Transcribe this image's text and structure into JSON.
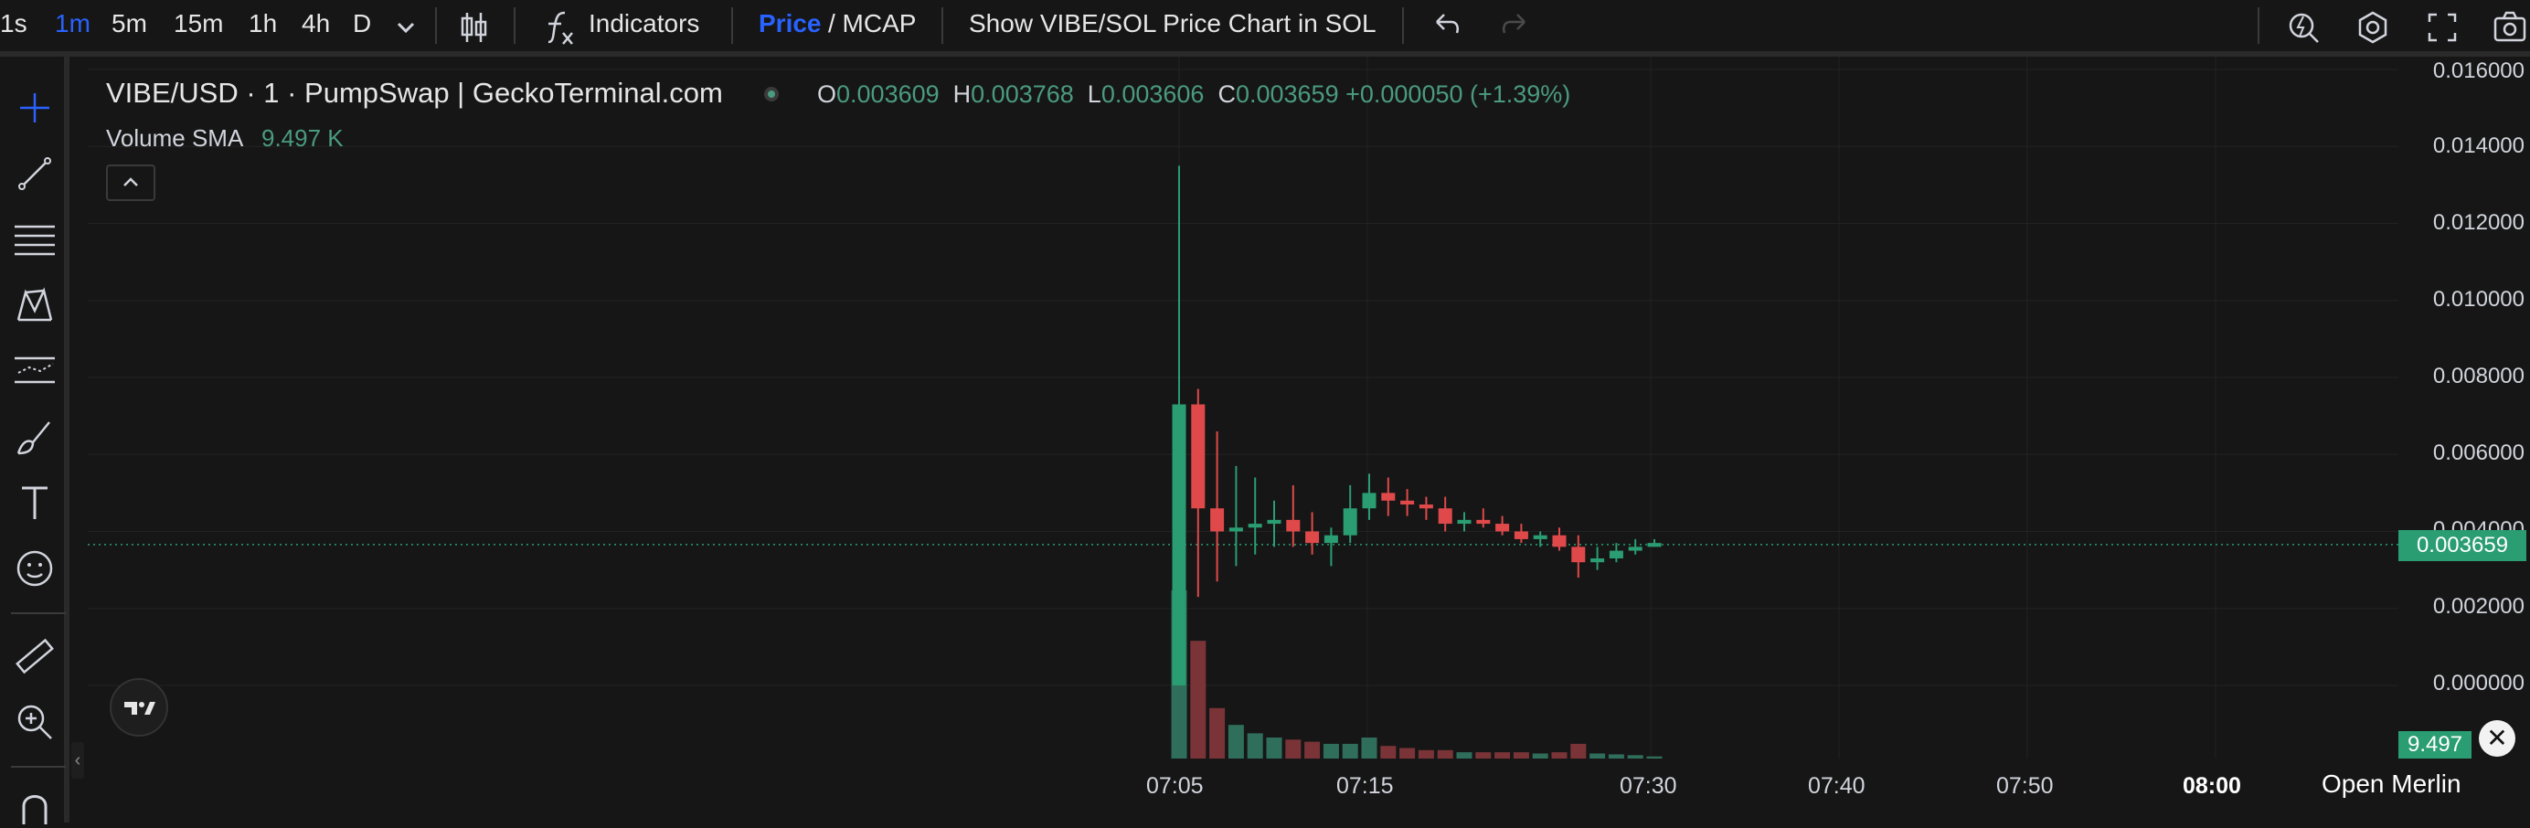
{
  "toolbar": {
    "timeframes": [
      "1s",
      "1m",
      "5m",
      "15m",
      "1h",
      "4h",
      "D"
    ],
    "active_timeframe": "1m",
    "indicators_label": "Indicators",
    "price_label": "Price",
    "mcap_label": "/ MCAP",
    "show_sol_label": "Show VIBE/SOL Price Chart in SOL",
    "icons": [
      "chevron-down-icon",
      "candles-icon",
      "fx-icon",
      "undo-icon",
      "redo-icon",
      "quick-search-icon",
      "settings-icon",
      "fullscreen-icon",
      "camera-icon"
    ]
  },
  "left_tools": {
    "icons": [
      "crosshair-icon",
      "trend-line-icon",
      "fib-lines-icon",
      "pattern-icon",
      "prediction-icon",
      "brush-icon",
      "text-tool-icon",
      "emoji-icon",
      "ruler-icon",
      "zoom-in-icon",
      "magnet-icon"
    ]
  },
  "legend": {
    "title": "VIBE/USD · 1 · PumpSwap | GeckoTerminal.com",
    "o_key": "O",
    "o_val": "0.003609",
    "h_key": "H",
    "h_val": "0.003768",
    "l_key": "L",
    "l_val": "0.003606",
    "c_key": "C",
    "c_val": "0.003659",
    "change": "+0.000050 (+1.39%)",
    "volume_label": "Volume SMA",
    "volume_value": "9.497 K"
  },
  "axis": {
    "y_ticks": [
      "0.016000",
      "0.014000",
      "0.012000",
      "0.010000",
      "0.008000",
      "0.006000",
      "0.004000",
      "0.002000",
      "0.000000"
    ],
    "x_ticks": [
      "07:05",
      "07:15",
      "07:30",
      "07:40",
      "07:50",
      "08:00"
    ],
    "current_price": "0.003659",
    "volume_badge": "9.497"
  },
  "overlay": {
    "open_merlin": "Open Merlin",
    "close_glyph": "✕"
  },
  "colors": {
    "up": "#2a9d72",
    "down": "#e0494a",
    "up_volume": "#2f6e5a",
    "down_volume": "#7a3437",
    "accent": "#2962ff"
  },
  "chart_data": {
    "type": "candlestick",
    "title": "VIBE/USD · 1 · PumpSwap | GeckoTerminal.com",
    "ylim": [
      0,
      0.016
    ],
    "current_price": 0.003659,
    "candles": [
      {
        "t": "07:05",
        "o": 0.0,
        "h": 0.0135,
        "l": 0.0,
        "c": 0.0073,
        "v": 40
      },
      {
        "t": "07:06",
        "o": 0.0073,
        "h": 0.0077,
        "l": 0.0023,
        "c": 0.0046,
        "v": 28
      },
      {
        "t": "07:07",
        "o": 0.0046,
        "h": 0.0066,
        "l": 0.0027,
        "c": 0.004,
        "v": 12
      },
      {
        "t": "07:08",
        "o": 0.004,
        "h": 0.0057,
        "l": 0.0031,
        "c": 0.0041,
        "v": 8
      },
      {
        "t": "07:09",
        "o": 0.0041,
        "h": 0.0054,
        "l": 0.0034,
        "c": 0.0042,
        "v": 6
      },
      {
        "t": "07:10",
        "o": 0.0042,
        "h": 0.0048,
        "l": 0.0036,
        "c": 0.0043,
        "v": 5
      },
      {
        "t": "07:11",
        "o": 0.0043,
        "h": 0.0052,
        "l": 0.0036,
        "c": 0.004,
        "v": 4.5
      },
      {
        "t": "07:12",
        "o": 0.004,
        "h": 0.0045,
        "l": 0.0034,
        "c": 0.0037,
        "v": 4
      },
      {
        "t": "07:13",
        "o": 0.0037,
        "h": 0.0041,
        "l": 0.0031,
        "c": 0.0039,
        "v": 3.5
      },
      {
        "t": "07:14",
        "o": 0.0039,
        "h": 0.0052,
        "l": 0.0037,
        "c": 0.0046,
        "v": 3.5
      },
      {
        "t": "07:15",
        "o": 0.0046,
        "h": 0.0055,
        "l": 0.0043,
        "c": 0.005,
        "v": 5
      },
      {
        "t": "07:16",
        "o": 0.005,
        "h": 0.0054,
        "l": 0.0044,
        "c": 0.0048,
        "v": 3
      },
      {
        "t": "07:17",
        "o": 0.0048,
        "h": 0.0051,
        "l": 0.0044,
        "c": 0.0047,
        "v": 2.5
      },
      {
        "t": "07:18",
        "o": 0.0047,
        "h": 0.0049,
        "l": 0.0043,
        "c": 0.0046,
        "v": 2
      },
      {
        "t": "07:19",
        "o": 0.0046,
        "h": 0.0049,
        "l": 0.004,
        "c": 0.0042,
        "v": 2
      },
      {
        "t": "07:20",
        "o": 0.0042,
        "h": 0.0045,
        "l": 0.004,
        "c": 0.0043,
        "v": 1.5
      },
      {
        "t": "07:21",
        "o": 0.0043,
        "h": 0.0046,
        "l": 0.0041,
        "c": 0.0042,
        "v": 1.5
      },
      {
        "t": "07:22",
        "o": 0.0042,
        "h": 0.0044,
        "l": 0.0039,
        "c": 0.004,
        "v": 1.5
      },
      {
        "t": "07:23",
        "o": 0.004,
        "h": 0.0042,
        "l": 0.0037,
        "c": 0.0038,
        "v": 1.5
      },
      {
        "t": "07:24",
        "o": 0.0038,
        "h": 0.004,
        "l": 0.0036,
        "c": 0.0039,
        "v": 1.2
      },
      {
        "t": "07:25",
        "o": 0.0039,
        "h": 0.0041,
        "l": 0.0035,
        "c": 0.0036,
        "v": 1.5
      },
      {
        "t": "07:26",
        "o": 0.0036,
        "h": 0.0039,
        "l": 0.0028,
        "c": 0.0032,
        "v": 3.5
      },
      {
        "t": "07:27",
        "o": 0.0032,
        "h": 0.0036,
        "l": 0.003,
        "c": 0.0033,
        "v": 1.2
      },
      {
        "t": "07:28",
        "o": 0.0033,
        "h": 0.0037,
        "l": 0.0032,
        "c": 0.0035,
        "v": 1
      },
      {
        "t": "07:29",
        "o": 0.0035,
        "h": 0.0038,
        "l": 0.0034,
        "c": 0.0036,
        "v": 0.8
      },
      {
        "t": "07:30",
        "o": 0.0036,
        "h": 0.0038,
        "l": 0.0036,
        "c": 0.0037,
        "v": 0.5
      }
    ]
  }
}
